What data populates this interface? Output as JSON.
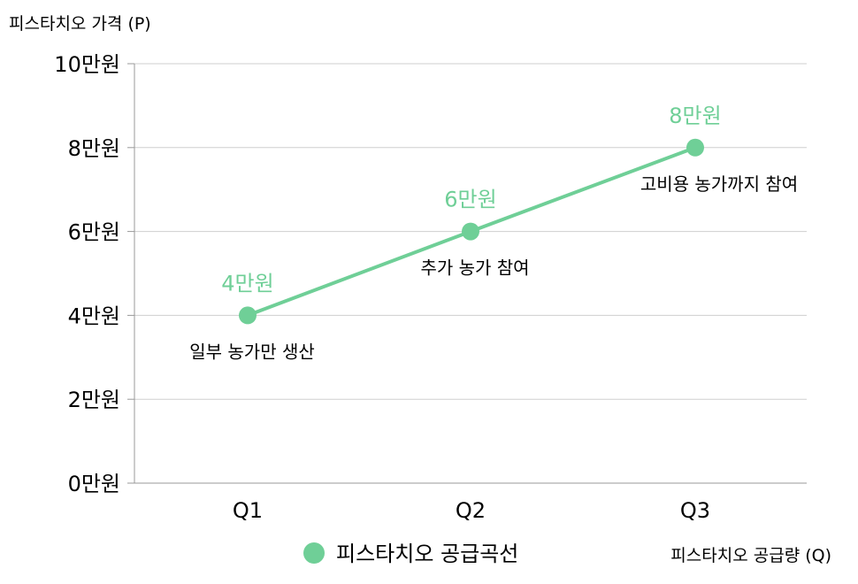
{
  "chart_data": {
    "type": "line",
    "ylabel": "피스타치오 가격 (P)",
    "xlabel": "피스타치오 공급량 (Q)",
    "categories": [
      "Q1",
      "Q2",
      "Q3"
    ],
    "ylim": [
      0,
      10
    ],
    "y_ticks": [
      {
        "value": 0,
        "label": "0만원"
      },
      {
        "value": 2,
        "label": "2만원"
      },
      {
        "value": 4,
        "label": "4만원"
      },
      {
        "value": 6,
        "label": "6만원"
      },
      {
        "value": 8,
        "label": "8만원"
      },
      {
        "value": 10,
        "label": "10만원"
      }
    ],
    "grid": true,
    "legend_position": "bottom",
    "series": [
      {
        "name": "피스타치오 공급곡선",
        "color": "#6fcf97",
        "values": [
          4,
          6,
          8
        ],
        "value_labels": [
          "4만원",
          "6만원",
          "8만원"
        ],
        "annotations": [
          "일부 농가만 생산",
          "추가 농가 참여",
          "고비용 농가까지 참여"
        ]
      }
    ]
  }
}
